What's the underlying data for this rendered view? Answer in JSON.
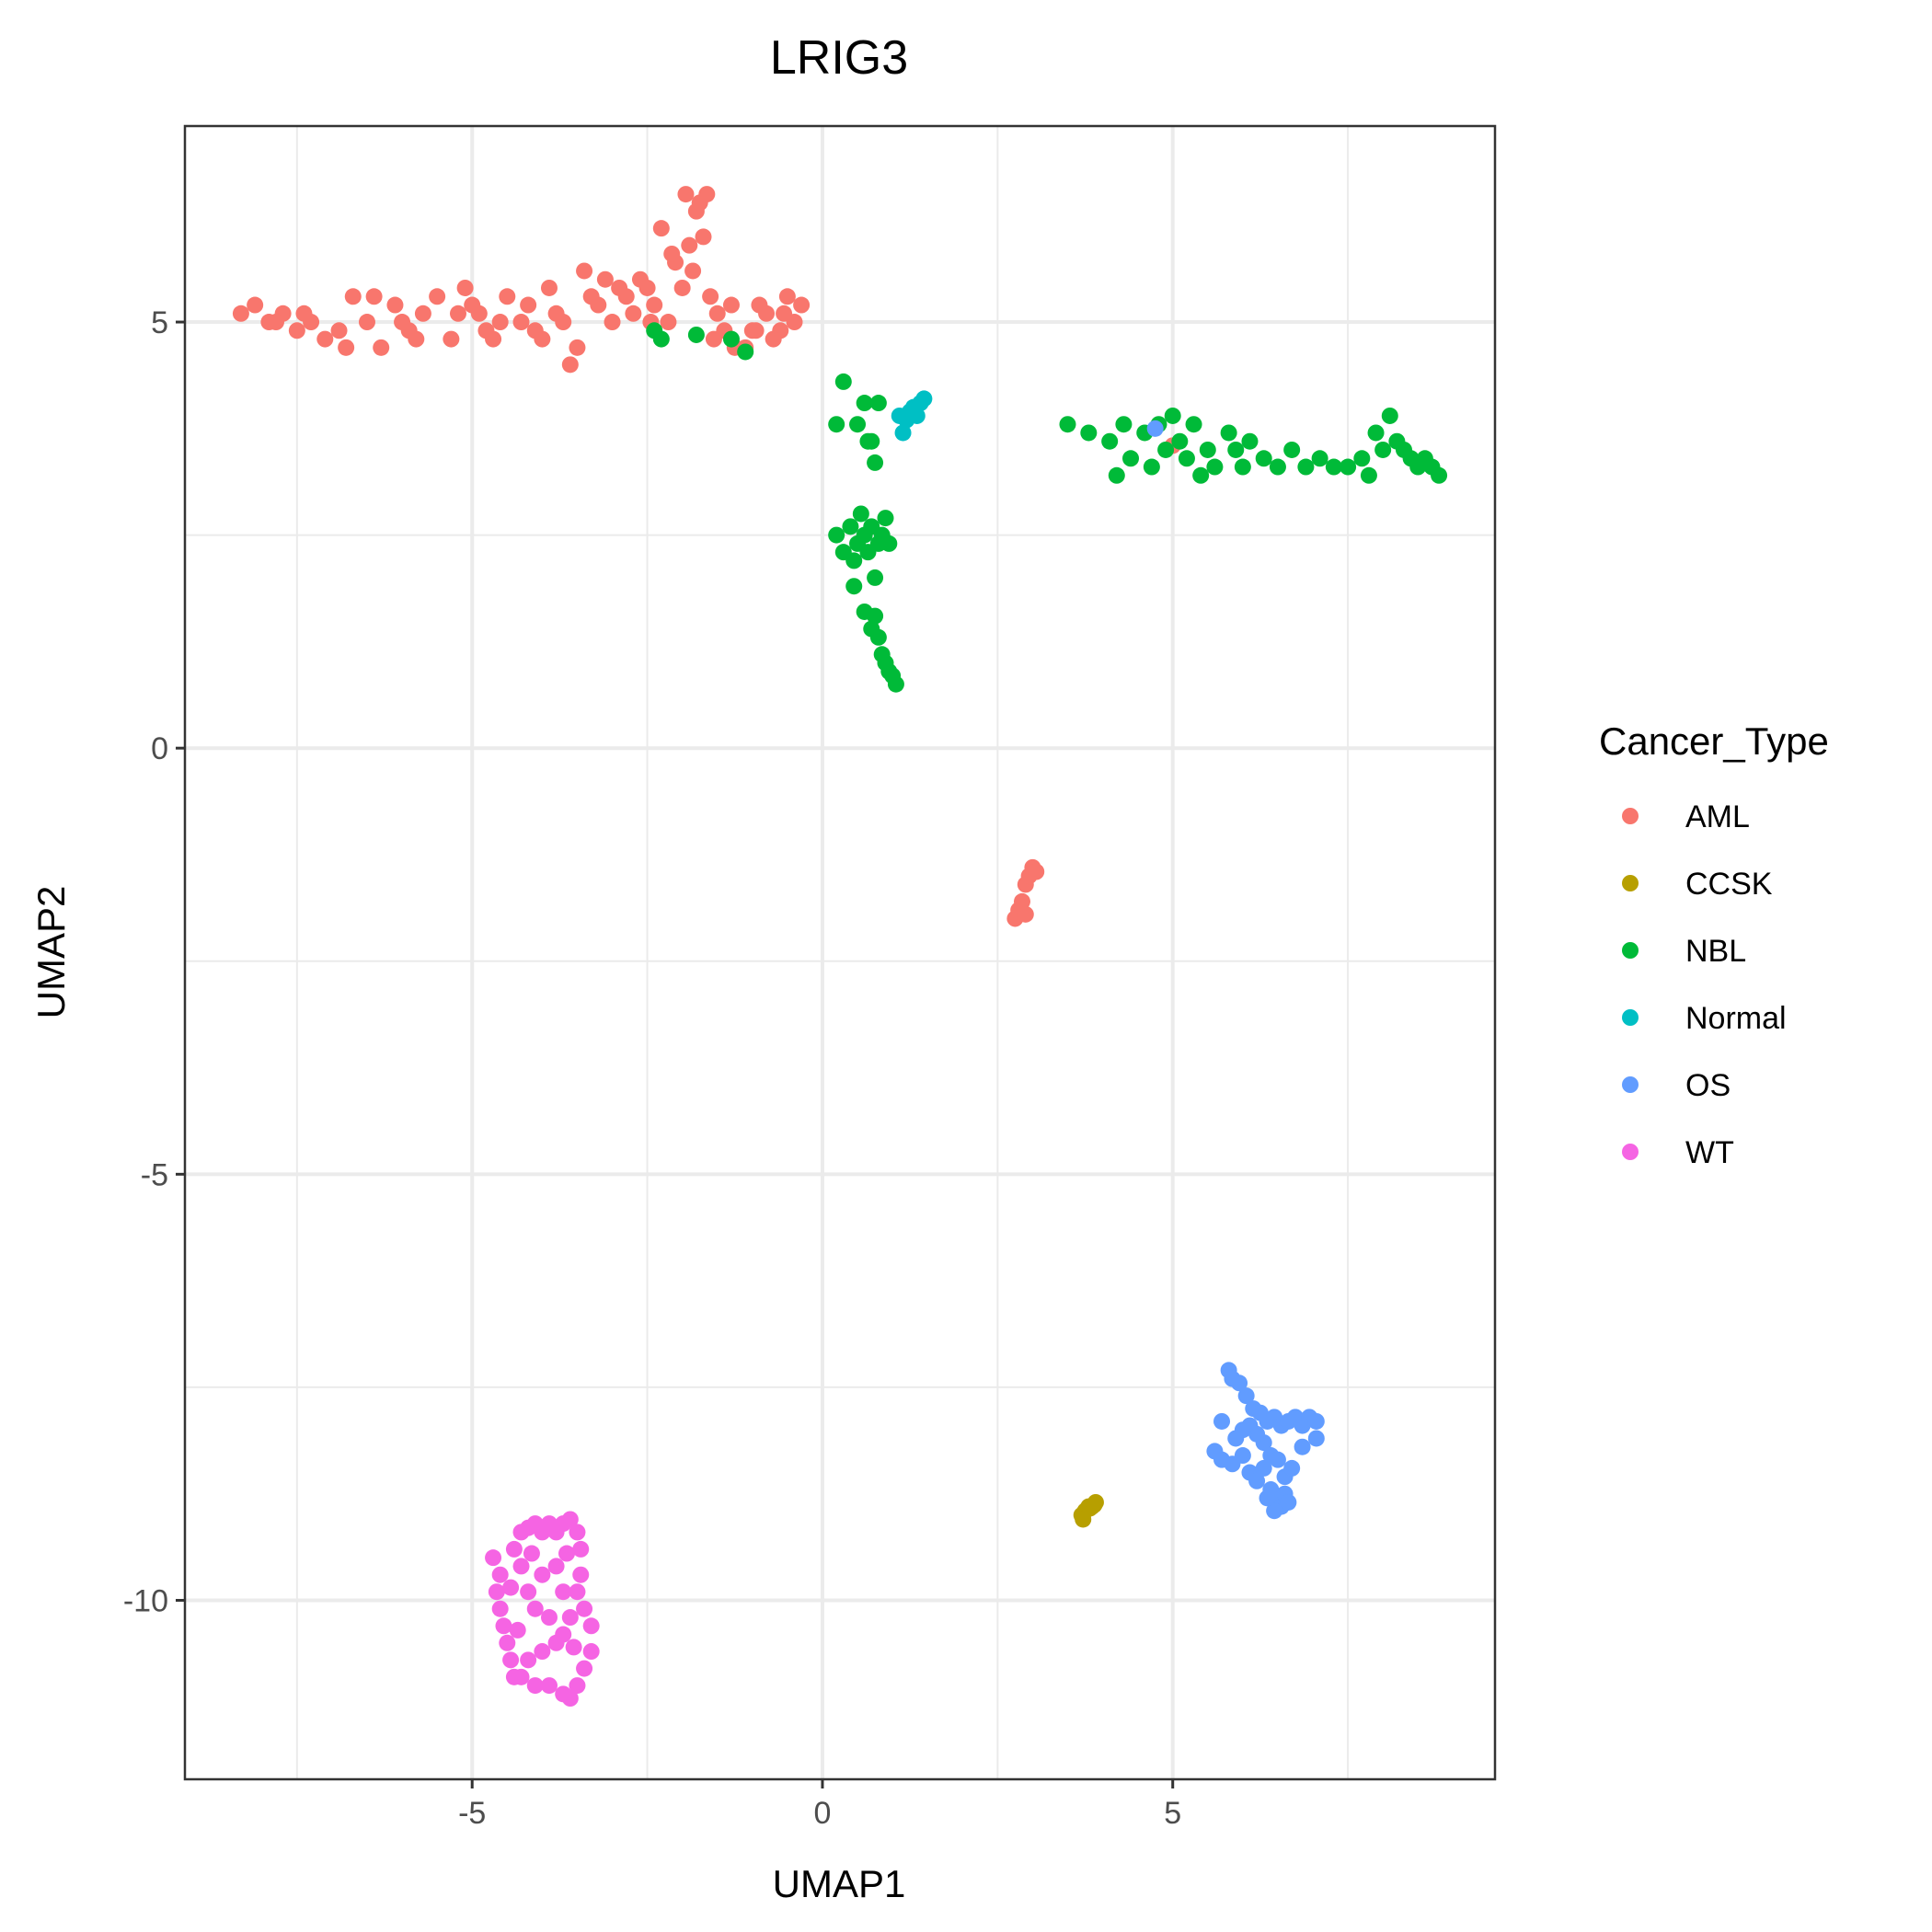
{
  "chart_data": {
    "type": "scatter",
    "title": "LRIG3",
    "xlabel": "UMAP1",
    "ylabel": "UMAP2",
    "xlim": [
      -9.1,
      9.6
    ],
    "ylim": [
      -12.1,
      7.3
    ],
    "x_ticks": [
      -5,
      0,
      5
    ],
    "y_ticks": [
      5,
      0,
      -5,
      -10
    ],
    "x_tick_labels": [
      "-5",
      "0",
      "5"
    ],
    "y_tick_labels": [
      "5",
      "0",
      "-5",
      "-10"
    ],
    "grid": true,
    "legend": {
      "title": "Cancer_Type",
      "position": "right"
    },
    "series": [
      {
        "name": "AML",
        "color": "#F8766D",
        "points": [
          [
            -8.3,
            5.1
          ],
          [
            -8.1,
            5.2
          ],
          [
            -7.9,
            5.0
          ],
          [
            -7.7,
            5.1
          ],
          [
            -7.5,
            4.9
          ],
          [
            -7.3,
            5.0
          ],
          [
            -7.1,
            4.8
          ],
          [
            -6.9,
            4.9
          ],
          [
            -6.7,
            5.3
          ],
          [
            -6.5,
            5.0
          ],
          [
            -6.3,
            4.7
          ],
          [
            -6.1,
            5.2
          ],
          [
            -5.9,
            4.9
          ],
          [
            -5.7,
            5.1
          ],
          [
            -5.5,
            5.3
          ],
          [
            -5.3,
            4.8
          ],
          [
            -5.1,
            5.4
          ],
          [
            -4.9,
            5.1
          ],
          [
            -4.7,
            4.8
          ],
          [
            -4.5,
            5.3
          ],
          [
            -4.3,
            5.0
          ],
          [
            -4.1,
            4.9
          ],
          [
            -3.9,
            5.4
          ],
          [
            -3.7,
            5.0
          ],
          [
            -3.5,
            4.7
          ],
          [
            -3.4,
            5.6
          ],
          [
            -3.2,
            5.2
          ],
          [
            -3.0,
            5.0
          ],
          [
            -2.8,
            5.3
          ],
          [
            -2.6,
            5.5
          ],
          [
            -2.4,
            5.2
          ],
          [
            -2.3,
            6.1
          ],
          [
            -2.2,
            5.0
          ],
          [
            -2.1,
            5.7
          ],
          [
            -2.0,
            5.4
          ],
          [
            -1.9,
            5.9
          ],
          [
            -1.8,
            6.3
          ],
          [
            -1.7,
            6.0
          ],
          [
            -1.6,
            5.3
          ],
          [
            -1.5,
            5.1
          ],
          [
            -1.4,
            4.9
          ],
          [
            -1.3,
            5.2
          ],
          [
            -1.1,
            4.7
          ],
          [
            -1.0,
            4.9
          ],
          [
            -0.8,
            5.1
          ],
          [
            -0.6,
            4.9
          ],
          [
            -0.5,
            5.3
          ],
          [
            -0.3,
            5.2
          ],
          [
            -6.8,
            4.7
          ],
          [
            -6.4,
            5.3
          ],
          [
            -5.8,
            4.8
          ],
          [
            -5.2,
            5.1
          ],
          [
            -4.6,
            5.0
          ],
          [
            -4.0,
            4.8
          ],
          [
            -3.6,
            4.5
          ],
          [
            -3.1,
            5.5
          ],
          [
            -2.7,
            5.1
          ],
          [
            -2.5,
            5.4
          ],
          [
            -1.95,
            6.5
          ],
          [
            -1.75,
            6.4
          ],
          [
            -1.65,
            6.5
          ],
          [
            -2.15,
            5.8
          ],
          [
            -1.85,
            5.6
          ],
          [
            -1.55,
            4.8
          ],
          [
            -0.9,
            5.2
          ],
          [
            -0.7,
            4.8
          ],
          [
            -0.4,
            5.0
          ],
          [
            -7.4,
            5.1
          ],
          [
            -6.0,
            5.0
          ],
          [
            -5.0,
            5.2
          ],
          [
            -4.2,
            5.2
          ],
          [
            -3.3,
            5.3
          ],
          [
            -2.9,
            5.4
          ],
          [
            -1.25,
            4.7
          ],
          [
            -0.95,
            4.9
          ],
          [
            -0.55,
            5.1
          ],
          [
            -7.8,
            5.0
          ],
          [
            -4.8,
            4.9
          ],
          [
            -3.8,
            5.1
          ],
          [
            -2.45,
            5.0
          ],
          [
            2.8,
            -1.9
          ],
          [
            2.85,
            -1.8
          ],
          [
            2.9,
            -1.6
          ],
          [
            2.95,
            -1.5
          ],
          [
            3.0,
            -1.4
          ],
          [
            3.05,
            -1.45
          ],
          [
            2.75,
            -2.0
          ],
          [
            2.9,
            -1.95
          ],
          [
            5.0,
            3.55
          ]
        ]
      },
      {
        "name": "CCSK",
        "color": "#B79F00",
        "points": [
          [
            3.7,
            -9.0
          ],
          [
            3.75,
            -8.95
          ],
          [
            3.8,
            -8.9
          ],
          [
            3.85,
            -8.9
          ],
          [
            3.9,
            -8.85
          ],
          [
            3.72,
            -9.05
          ],
          [
            3.82,
            -8.92
          ],
          [
            3.88,
            -8.88
          ]
        ]
      },
      {
        "name": "NBL",
        "color": "#00BA38",
        "points": [
          [
            -2.4,
            4.9
          ],
          [
            -2.3,
            4.8
          ],
          [
            -1.8,
            4.85
          ],
          [
            -1.3,
            4.8
          ],
          [
            -1.1,
            4.65
          ],
          [
            0.2,
            3.8
          ],
          [
            0.3,
            4.3
          ],
          [
            0.5,
            3.8
          ],
          [
            0.6,
            4.05
          ],
          [
            0.7,
            3.6
          ],
          [
            0.8,
            4.05
          ],
          [
            0.75,
            3.35
          ],
          [
            0.65,
            3.6
          ],
          [
            0.2,
            2.5
          ],
          [
            0.3,
            2.3
          ],
          [
            0.4,
            2.6
          ],
          [
            0.45,
            2.2
          ],
          [
            0.5,
            2.4
          ],
          [
            0.55,
            2.75
          ],
          [
            0.6,
            2.5
          ],
          [
            0.65,
            2.3
          ],
          [
            0.7,
            2.6
          ],
          [
            0.75,
            2.0
          ],
          [
            0.8,
            2.4
          ],
          [
            0.85,
            2.5
          ],
          [
            0.9,
            2.7
          ],
          [
            0.95,
            2.4
          ],
          [
            0.45,
            1.9
          ],
          [
            0.6,
            1.6
          ],
          [
            0.7,
            1.4
          ],
          [
            0.8,
            1.3
          ],
          [
            0.85,
            1.1
          ],
          [
            0.9,
            1.0
          ],
          [
            0.95,
            0.9
          ],
          [
            1.0,
            0.85
          ],
          [
            1.05,
            0.75
          ],
          [
            0.75,
            1.55
          ],
          [
            3.5,
            3.8
          ],
          [
            3.8,
            3.7
          ],
          [
            4.1,
            3.6
          ],
          [
            4.3,
            3.8
          ],
          [
            4.4,
            3.4
          ],
          [
            4.6,
            3.7
          ],
          [
            4.7,
            3.3
          ],
          [
            4.8,
            3.8
          ],
          [
            4.9,
            3.5
          ],
          [
            5.0,
            3.9
          ],
          [
            5.1,
            3.6
          ],
          [
            5.2,
            3.4
          ],
          [
            5.3,
            3.8
          ],
          [
            5.5,
            3.5
          ],
          [
            5.6,
            3.3
          ],
          [
            5.8,
            3.7
          ],
          [
            5.9,
            3.5
          ],
          [
            6.1,
            3.6
          ],
          [
            6.3,
            3.4
          ],
          [
            6.5,
            3.3
          ],
          [
            6.7,
            3.5
          ],
          [
            6.9,
            3.3
          ],
          [
            7.1,
            3.4
          ],
          [
            7.3,
            3.3
          ],
          [
            7.5,
            3.3
          ],
          [
            7.7,
            3.4
          ],
          [
            7.8,
            3.2
          ],
          [
            7.9,
            3.7
          ],
          [
            8.0,
            3.5
          ],
          [
            8.1,
            3.9
          ],
          [
            8.2,
            3.6
          ],
          [
            8.3,
            3.5
          ],
          [
            8.4,
            3.4
          ],
          [
            8.5,
            3.3
          ],
          [
            8.6,
            3.4
          ],
          [
            8.7,
            3.3
          ],
          [
            8.8,
            3.2
          ],
          [
            4.2,
            3.2
          ],
          [
            5.4,
            3.2
          ],
          [
            6.0,
            3.3
          ]
        ]
      },
      {
        "name": "Normal",
        "color": "#00BFC4",
        "points": [
          [
            1.1,
            3.9
          ],
          [
            1.2,
            3.85
          ],
          [
            1.25,
            3.95
          ],
          [
            1.3,
            4.0
          ],
          [
            1.35,
            3.9
          ],
          [
            1.4,
            4.05
          ],
          [
            1.45,
            4.1
          ],
          [
            1.15,
            3.7
          ]
        ]
      },
      {
        "name": "OS",
        "color": "#619CFF",
        "points": [
          [
            4.75,
            3.75
          ],
          [
            5.8,
            -7.3
          ],
          [
            5.85,
            -7.4
          ],
          [
            5.95,
            -7.45
          ],
          [
            6.05,
            -7.6
          ],
          [
            6.15,
            -7.75
          ],
          [
            6.25,
            -7.8
          ],
          [
            6.35,
            -7.9
          ],
          [
            6.45,
            -7.85
          ],
          [
            6.55,
            -7.95
          ],
          [
            6.65,
            -7.9
          ],
          [
            6.75,
            -7.85
          ],
          [
            6.85,
            -7.95
          ],
          [
            6.95,
            -7.85
          ],
          [
            7.05,
            -7.9
          ],
          [
            7.05,
            -8.1
          ],
          [
            6.85,
            -8.2
          ],
          [
            5.7,
            -7.9
          ],
          [
            5.6,
            -8.25
          ],
          [
            5.7,
            -8.35
          ],
          [
            5.85,
            -8.4
          ],
          [
            6.0,
            -8.3
          ],
          [
            6.1,
            -8.5
          ],
          [
            6.2,
            -8.6
          ],
          [
            6.3,
            -8.45
          ],
          [
            6.4,
            -8.7
          ],
          [
            6.5,
            -8.8
          ],
          [
            6.55,
            -8.9
          ],
          [
            6.6,
            -8.75
          ],
          [
            6.65,
            -8.85
          ],
          [
            6.4,
            -8.3
          ],
          [
            6.3,
            -8.15
          ],
          [
            6.2,
            -8.05
          ],
          [
            6.1,
            -7.95
          ],
          [
            6.0,
            -8.0
          ],
          [
            5.9,
            -8.1
          ],
          [
            6.6,
            -8.55
          ],
          [
            6.7,
            -8.45
          ],
          [
            6.5,
            -8.35
          ],
          [
            6.45,
            -8.95
          ],
          [
            6.35,
            -8.8
          ]
        ]
      },
      {
        "name": "WT",
        "color": "#F564E3",
        "points": [
          [
            -4.7,
            -9.5
          ],
          [
            -4.6,
            -9.7
          ],
          [
            -4.65,
            -9.9
          ],
          [
            -4.6,
            -10.1
          ],
          [
            -4.55,
            -10.3
          ],
          [
            -4.5,
            -10.5
          ],
          [
            -4.45,
            -10.7
          ],
          [
            -4.4,
            -9.4
          ],
          [
            -4.3,
            -9.2
          ],
          [
            -4.2,
            -9.15
          ],
          [
            -4.1,
            -9.1
          ],
          [
            -4.0,
            -9.2
          ],
          [
            -3.9,
            -9.1
          ],
          [
            -3.8,
            -9.2
          ],
          [
            -3.7,
            -9.1
          ],
          [
            -3.6,
            -9.05
          ],
          [
            -3.5,
            -9.2
          ],
          [
            -3.45,
            -9.4
          ],
          [
            -3.45,
            -9.7
          ],
          [
            -3.5,
            -9.9
          ],
          [
            -3.4,
            -10.1
          ],
          [
            -3.3,
            -10.3
          ],
          [
            -3.3,
            -10.6
          ],
          [
            -3.4,
            -10.8
          ],
          [
            -3.5,
            -11.0
          ],
          [
            -3.6,
            -11.15
          ],
          [
            -3.7,
            -11.1
          ],
          [
            -3.9,
            -11.0
          ],
          [
            -4.1,
            -11.0
          ],
          [
            -4.3,
            -10.9
          ],
          [
            -4.4,
            -10.9
          ],
          [
            -4.2,
            -10.7
          ],
          [
            -4.0,
            -10.6
          ],
          [
            -3.8,
            -10.5
          ],
          [
            -3.9,
            -10.2
          ],
          [
            -4.1,
            -10.1
          ],
          [
            -4.2,
            -9.9
          ],
          [
            -4.0,
            -9.7
          ],
          [
            -3.8,
            -9.6
          ],
          [
            -3.7,
            -9.9
          ],
          [
            -3.6,
            -10.2
          ],
          [
            -3.7,
            -10.4
          ],
          [
            -4.3,
            -9.6
          ],
          [
            -4.45,
            -9.85
          ],
          [
            -4.35,
            -10.35
          ],
          [
            -3.55,
            -10.55
          ],
          [
            -3.65,
            -9.45
          ],
          [
            -4.15,
            -9.45
          ]
        ]
      }
    ]
  }
}
